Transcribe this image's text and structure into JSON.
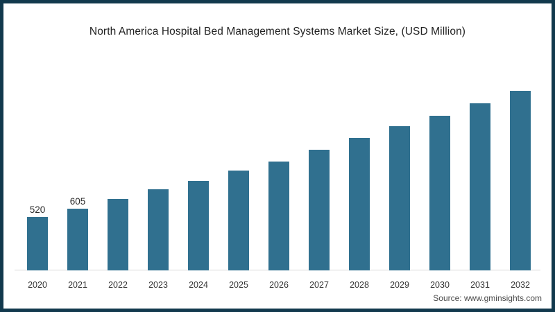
{
  "header": {
    "title": "North America Hospital Bed Management Systems Market Size, (USD Million)"
  },
  "chart_data": {
    "type": "bar",
    "title": "North America Hospital Bed Management Systems Market Size, (USD Million)",
    "categories": [
      "2020",
      "2021",
      "2022",
      "2023",
      "2024",
      "2025",
      "2026",
      "2027",
      "2028",
      "2029",
      "2030",
      "2031",
      "2032"
    ],
    "values": [
      520,
      605,
      700,
      790,
      875,
      975,
      1060,
      1175,
      1290,
      1405,
      1510,
      1630,
      1750
    ],
    "value_labels": [
      "520",
      "605",
      "",
      "",
      "",
      "",
      "",
      "",
      "",
      "",
      "",
      "",
      ""
    ],
    "xlabel": "",
    "ylabel": "",
    "ylim": [
      0,
      1800
    ],
    "grid": false,
    "legend": false,
    "bar_color": "#30708f"
  },
  "footer": {
    "source": "Source: www.gminsights.com"
  },
  "colors": {
    "bar": "#30708f",
    "frame_border": "#12394d",
    "axis_line": "#d8d8d8",
    "title_text": "#222222",
    "tick_text": "#333333",
    "value_label_text": "#2b2b2b",
    "source_text": "#4a4a4a",
    "background": "#ffffff"
  }
}
